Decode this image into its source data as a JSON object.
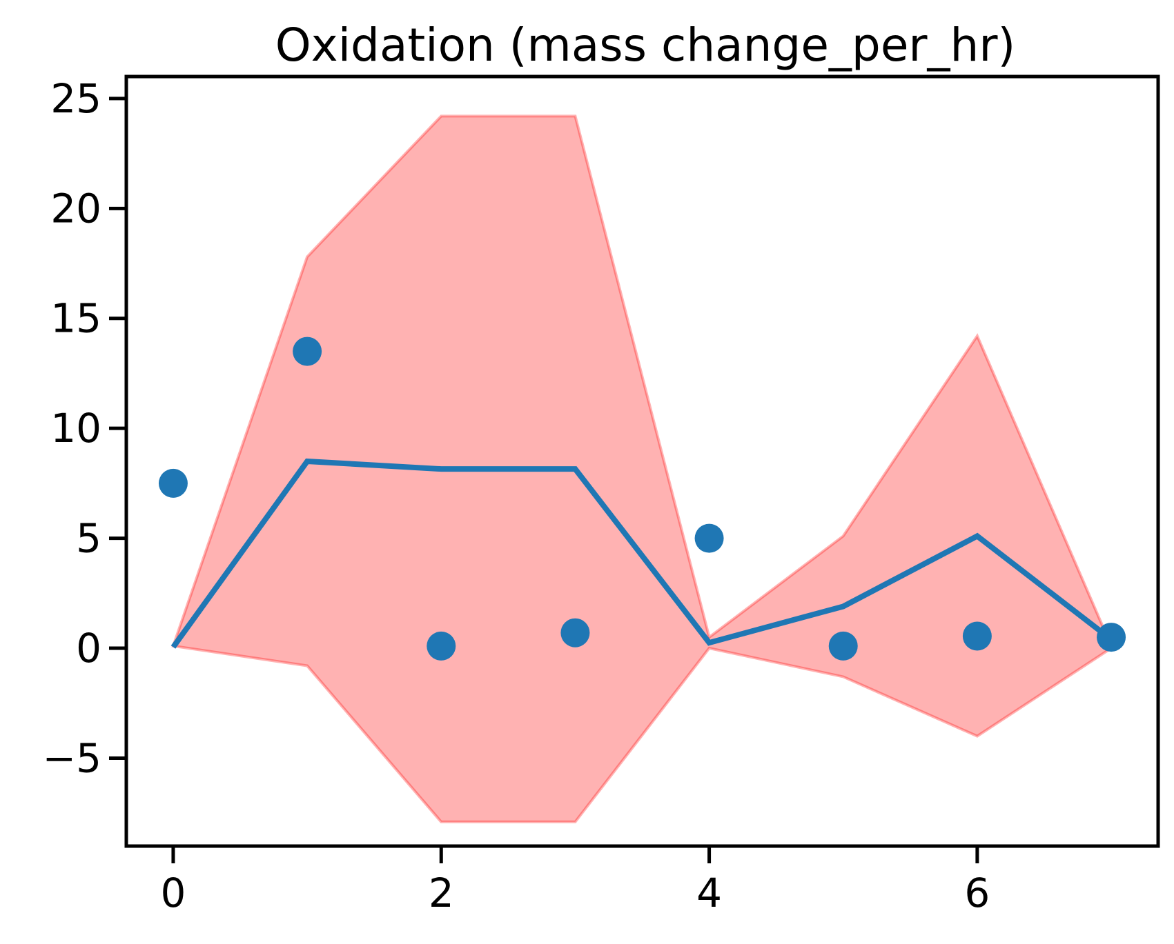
{
  "chart_data": {
    "type": "line",
    "title": "Oxidation (mass change_per_hr)",
    "xlabel": "",
    "ylabel": "",
    "xlim": [
      -0.35,
      7.35
    ],
    "ylim": [
      -9.0,
      26.0
    ],
    "x_ticks": [
      0,
      2,
      4,
      6
    ],
    "x_tick_labels": [
      "0",
      "2",
      "4",
      "6"
    ],
    "y_ticks": [
      -5,
      0,
      5,
      10,
      15,
      20,
      25
    ],
    "y_tick_labels": [
      "−5",
      "0",
      "5",
      "10",
      "15",
      "20",
      "25"
    ],
    "grid": false,
    "legend": "none",
    "band": {
      "x": [
        0,
        1,
        2,
        3,
        4,
        5,
        6,
        7
      ],
      "upper": [
        0.1,
        17.8,
        24.2,
        24.2,
        0.5,
        5.1,
        14.2,
        0.1
      ],
      "lower": [
        0.1,
        -0.8,
        -7.9,
        -7.9,
        0.0,
        -1.3,
        -4.0,
        0.0
      ],
      "color": "#ff0000",
      "opacity": 0.3
    },
    "line": {
      "x": [
        0,
        1,
        2,
        3,
        4,
        5,
        6,
        7
      ],
      "y": [
        0.05,
        8.5,
        8.15,
        8.15,
        0.25,
        1.9,
        5.1,
        0.4
      ],
      "color": "#1f77b4"
    },
    "points": {
      "x": [
        0,
        1,
        2,
        3,
        4,
        5,
        6,
        7
      ],
      "y": [
        7.5,
        13.5,
        0.1,
        0.7,
        5.0,
        0.1,
        0.55,
        0.5
      ],
      "color": "#1f77b4"
    }
  }
}
